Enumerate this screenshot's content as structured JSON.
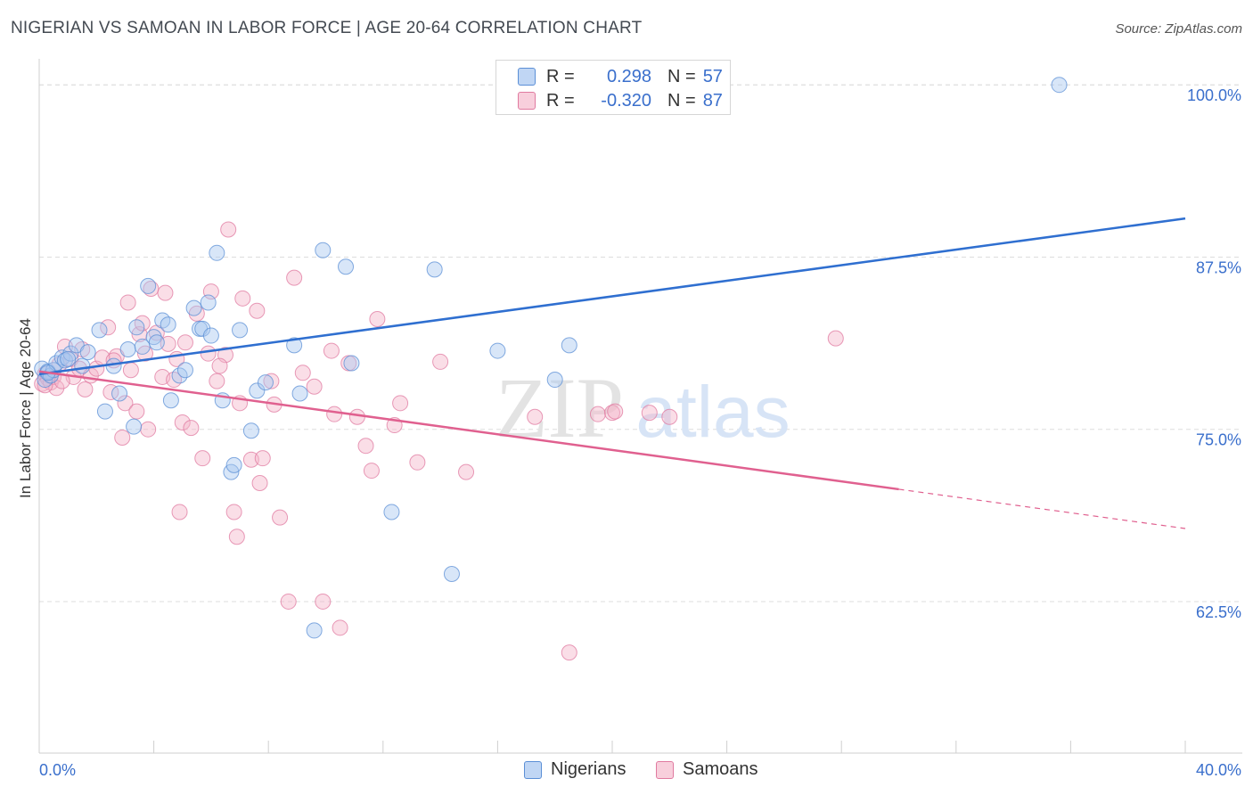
{
  "title": "NIGERIAN VS SAMOAN IN LABOR FORCE | AGE 20-64 CORRELATION CHART",
  "source": "Source: ZipAtlas.com",
  "watermark": {
    "zip": "ZIP",
    "atlas": "atlas"
  },
  "legend": {
    "r_label": "R =",
    "n_label": "N =",
    "series1": {
      "r": "0.298",
      "n": "57"
    },
    "series2": {
      "r": "-0.320",
      "n": "87"
    }
  },
  "bottom_legend": {
    "series1": "Nigerians",
    "series2": "Samoans"
  },
  "colors": {
    "blue_fill": "#a9c8f0",
    "blue_stroke": "#5b8fd6",
    "blue_line": "#2f6fd0",
    "pink_fill": "#f5b5ca",
    "pink_stroke": "#e07aa0",
    "pink_line": "#e0608f",
    "grid": "#dddddd",
    "axis_text_blue": "#3a6fcc"
  },
  "chart_data": {
    "type": "scatter",
    "title": "NIGERIAN VS SAMOAN IN LABOR FORCE | AGE 20-64 CORRELATION CHART",
    "xlabel": "",
    "ylabel": "In Labor Force | Age 20-64",
    "xlim": [
      0,
      40
    ],
    "ylim": [
      51.5,
      101.5
    ],
    "x_tick_labels": [
      "0.0%",
      "40.0%"
    ],
    "y_ticks": [
      62.5,
      75.0,
      87.5,
      100.0
    ],
    "y_tick_labels": [
      "62.5%",
      "75.0%",
      "87.5%",
      "100.0%"
    ],
    "grid": true,
    "legend_position": "top-center",
    "series": [
      {
        "name": "Nigerians",
        "color": "#5b8fd6",
        "trend": {
          "x": [
            0,
            40
          ],
          "y": [
            79.0,
            90.3
          ]
        },
        "points": [
          [
            0.1,
            79.4
          ],
          [
            0.2,
            78.6
          ],
          [
            0.3,
            79.2
          ],
          [
            0.4,
            78.9
          ],
          [
            0.5,
            79.3
          ],
          [
            0.6,
            79.8
          ],
          [
            0.8,
            80.2
          ],
          [
            0.9,
            80.0
          ],
          [
            1.1,
            80.5
          ],
          [
            1.3,
            81.1
          ],
          [
            1.5,
            79.6
          ],
          [
            1.7,
            80.6
          ],
          [
            2.1,
            82.2
          ],
          [
            2.3,
            76.3
          ],
          [
            2.6,
            79.6
          ],
          [
            2.8,
            77.6
          ],
          [
            3.1,
            80.8
          ],
          [
            3.3,
            75.2
          ],
          [
            3.4,
            82.4
          ],
          [
            3.6,
            81.0
          ],
          [
            3.8,
            85.4
          ],
          [
            4.0,
            81.7
          ],
          [
            4.1,
            81.3
          ],
          [
            4.3,
            82.9
          ],
          [
            4.5,
            82.6
          ],
          [
            4.6,
            77.1
          ],
          [
            4.9,
            78.9
          ],
          [
            5.1,
            79.3
          ],
          [
            5.4,
            83.8
          ],
          [
            5.6,
            82.3
          ],
          [
            5.7,
            82.3
          ],
          [
            5.9,
            84.2
          ],
          [
            6.0,
            81.8
          ],
          [
            6.2,
            87.8
          ],
          [
            6.4,
            77.1
          ],
          [
            6.7,
            71.9
          ],
          [
            6.8,
            72.4
          ],
          [
            7.0,
            82.2
          ],
          [
            7.4,
            74.9
          ],
          [
            7.6,
            77.8
          ],
          [
            7.9,
            78.4
          ],
          [
            8.9,
            81.1
          ],
          [
            9.1,
            77.6
          ],
          [
            9.6,
            60.4
          ],
          [
            9.9,
            88.0
          ],
          [
            10.7,
            86.8
          ],
          [
            10.9,
            79.8
          ],
          [
            12.3,
            69.0
          ],
          [
            13.8,
            86.6
          ],
          [
            14.4,
            64.5
          ],
          [
            16.0,
            80.7
          ],
          [
            16.3,
            100.0
          ],
          [
            18.0,
            78.6
          ],
          [
            18.5,
            81.1
          ],
          [
            35.6,
            100.0
          ],
          [
            0.3,
            79.1
          ],
          [
            1.0,
            80.1
          ]
        ]
      },
      {
        "name": "Samoans",
        "color": "#e07aa0",
        "trend": {
          "x": [
            0,
            40
          ],
          "y": [
            79.2,
            67.8
          ]
        },
        "trend_solid_until": 30,
        "points": [
          [
            0.1,
            78.3
          ],
          [
            0.2,
            79.0
          ],
          [
            0.3,
            78.7
          ],
          [
            0.4,
            78.4
          ],
          [
            0.5,
            78.8
          ],
          [
            0.6,
            78.0
          ],
          [
            0.7,
            79.7
          ],
          [
            0.9,
            81.0
          ],
          [
            1.1,
            80.1
          ],
          [
            1.2,
            78.8
          ],
          [
            1.4,
            79.4
          ],
          [
            1.6,
            77.9
          ],
          [
            1.8,
            78.9
          ],
          [
            2.0,
            79.4
          ],
          [
            2.2,
            80.2
          ],
          [
            2.4,
            82.4
          ],
          [
            2.5,
            77.7
          ],
          [
            2.7,
            80.3
          ],
          [
            2.9,
            74.4
          ],
          [
            3.0,
            76.9
          ],
          [
            3.1,
            84.2
          ],
          [
            3.2,
            79.3
          ],
          [
            3.5,
            81.9
          ],
          [
            3.6,
            82.7
          ],
          [
            3.7,
            80.5
          ],
          [
            3.8,
            75.0
          ],
          [
            3.9,
            85.2
          ],
          [
            4.1,
            82.0
          ],
          [
            4.3,
            78.8
          ],
          [
            4.4,
            84.9
          ],
          [
            4.5,
            81.2
          ],
          [
            4.7,
            78.6
          ],
          [
            4.9,
            69.0
          ],
          [
            5.0,
            75.5
          ],
          [
            5.1,
            81.3
          ],
          [
            5.3,
            75.1
          ],
          [
            5.5,
            83.4
          ],
          [
            5.7,
            72.9
          ],
          [
            5.9,
            80.5
          ],
          [
            6.0,
            85.0
          ],
          [
            6.2,
            78.5
          ],
          [
            6.5,
            80.4
          ],
          [
            6.6,
            89.5
          ],
          [
            6.8,
            69.0
          ],
          [
            6.9,
            67.2
          ],
          [
            7.1,
            84.5
          ],
          [
            7.4,
            72.8
          ],
          [
            7.6,
            83.6
          ],
          [
            7.7,
            71.1
          ],
          [
            7.8,
            72.9
          ],
          [
            8.1,
            78.5
          ],
          [
            8.2,
            76.8
          ],
          [
            8.4,
            68.6
          ],
          [
            8.7,
            62.5
          ],
          [
            8.9,
            86.0
          ],
          [
            9.2,
            79.1
          ],
          [
            9.9,
            62.5
          ],
          [
            10.3,
            76.1
          ],
          [
            10.5,
            60.6
          ],
          [
            10.8,
            79.8
          ],
          [
            11.1,
            75.9
          ],
          [
            11.4,
            73.8
          ],
          [
            11.6,
            72.0
          ],
          [
            11.8,
            83.0
          ],
          [
            12.4,
            75.3
          ],
          [
            12.6,
            76.9
          ],
          [
            13.2,
            72.6
          ],
          [
            14.0,
            79.9
          ],
          [
            14.9,
            71.9
          ],
          [
            17.3,
            75.9
          ],
          [
            18.5,
            58.8
          ],
          [
            19.5,
            76.1
          ],
          [
            20.0,
            76.2
          ],
          [
            20.1,
            76.3
          ],
          [
            21.3,
            76.2
          ],
          [
            22.0,
            75.9
          ],
          [
            27.8,
            81.6
          ],
          [
            0.2,
            78.2
          ],
          [
            0.8,
            78.5
          ],
          [
            1.5,
            80.8
          ],
          [
            2.6,
            80.0
          ],
          [
            3.4,
            76.3
          ],
          [
            4.8,
            80.1
          ],
          [
            6.3,
            79.6
          ],
          [
            7.0,
            76.9
          ],
          [
            9.6,
            78.1
          ],
          [
            10.2,
            80.7
          ]
        ]
      }
    ]
  }
}
